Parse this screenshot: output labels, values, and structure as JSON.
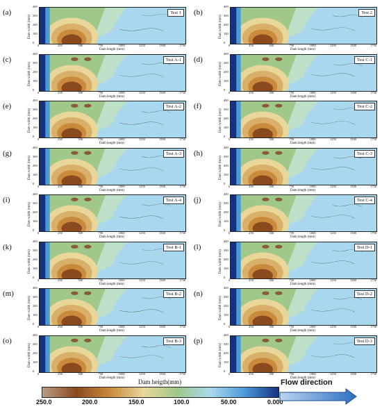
{
  "panels": [
    {
      "letter": "(a)",
      "test": "Test 1"
    },
    {
      "letter": "(b)",
      "test": "Test 2"
    },
    {
      "letter": "(c)",
      "test": "Test A-1"
    },
    {
      "letter": "(d)",
      "test": "Test C-1"
    },
    {
      "letter": "(e)",
      "test": "Test A-2"
    },
    {
      "letter": "(f)",
      "test": "Test C-2"
    },
    {
      "letter": "(g)",
      "test": "Test A-3"
    },
    {
      "letter": "(h)",
      "test": "Test C-3"
    },
    {
      "letter": "(i)",
      "test": "Test A-4"
    },
    {
      "letter": "(j)",
      "test": "Test C-4"
    },
    {
      "letter": "(k)",
      "test": "Test B-1"
    },
    {
      "letter": "(l)",
      "test": "Test D-1"
    },
    {
      "letter": "(m)",
      "test": "Test B-2"
    },
    {
      "letter": "(n)",
      "test": "Test D-2"
    },
    {
      "letter": "(o)",
      "test": "Test B-3"
    },
    {
      "letter": "(p)",
      "test": "Test D-3"
    }
  ],
  "axes": {
    "ylabel": "Dam width (mm)",
    "xlabel": "Dam length (mm)",
    "yticks": [
      "400",
      "300",
      "200",
      "100",
      "0"
    ],
    "xticks": [
      "0",
      "250",
      "500",
      "750",
      "1000",
      "1250",
      "1500",
      "1750"
    ]
  },
  "legend": {
    "title": "Dam heigth(mm)",
    "ticks": [
      "250.0",
      "200.0",
      "150.0",
      "100.0",
      "50.00",
      "0.000"
    ]
  },
  "flow": {
    "label": "Flow direction"
  },
  "colors": {
    "scale": [
      "#b89c86",
      "#8a4a1e",
      "#c98a3c",
      "#e9d79a",
      "#9fc88a",
      "#a9d8ee",
      "#4b9ad8",
      "#15327f"
    ]
  }
}
